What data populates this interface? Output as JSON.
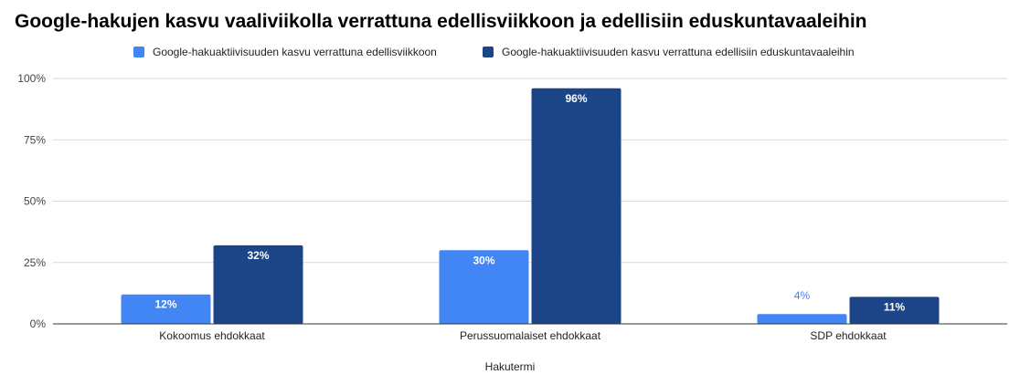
{
  "chart_data": {
    "type": "bar",
    "title": "Google-hakujen kasvu vaaliviikolla verrattuna edellisviikkoon ja edellisiin eduskuntavaaleihin",
    "xlabel": "Hakutermi",
    "ylabel": "",
    "categories": [
      "Kokoomus ehdokkaat",
      "Perussuomalaiset ehdokkaat",
      "SDP ehdokkaat"
    ],
    "series": [
      {
        "name": "Google-hakuaktiivisuuden kasvu verrattuna edellisviikkoon",
        "values": [
          12,
          30,
          4
        ],
        "labels": [
          "12%",
          "30%",
          "4%"
        ],
        "color": "#4285f4"
      },
      {
        "name": "Google-hakuaktiivisuuden kasvu verrattuna edellisiin eduskuntavaaleihin",
        "values": [
          32,
          96,
          11
        ],
        "labels": [
          "32%",
          "96%",
          "11%"
        ],
        "color": "#1c4587"
      }
    ],
    "ylim": [
      0,
      100
    ],
    "yticks": [
      0,
      25,
      50,
      75,
      100
    ],
    "ytick_labels": [
      "0%",
      "25%",
      "50%",
      "75%",
      "100%"
    ],
    "grid": true,
    "legend_position": "top"
  }
}
